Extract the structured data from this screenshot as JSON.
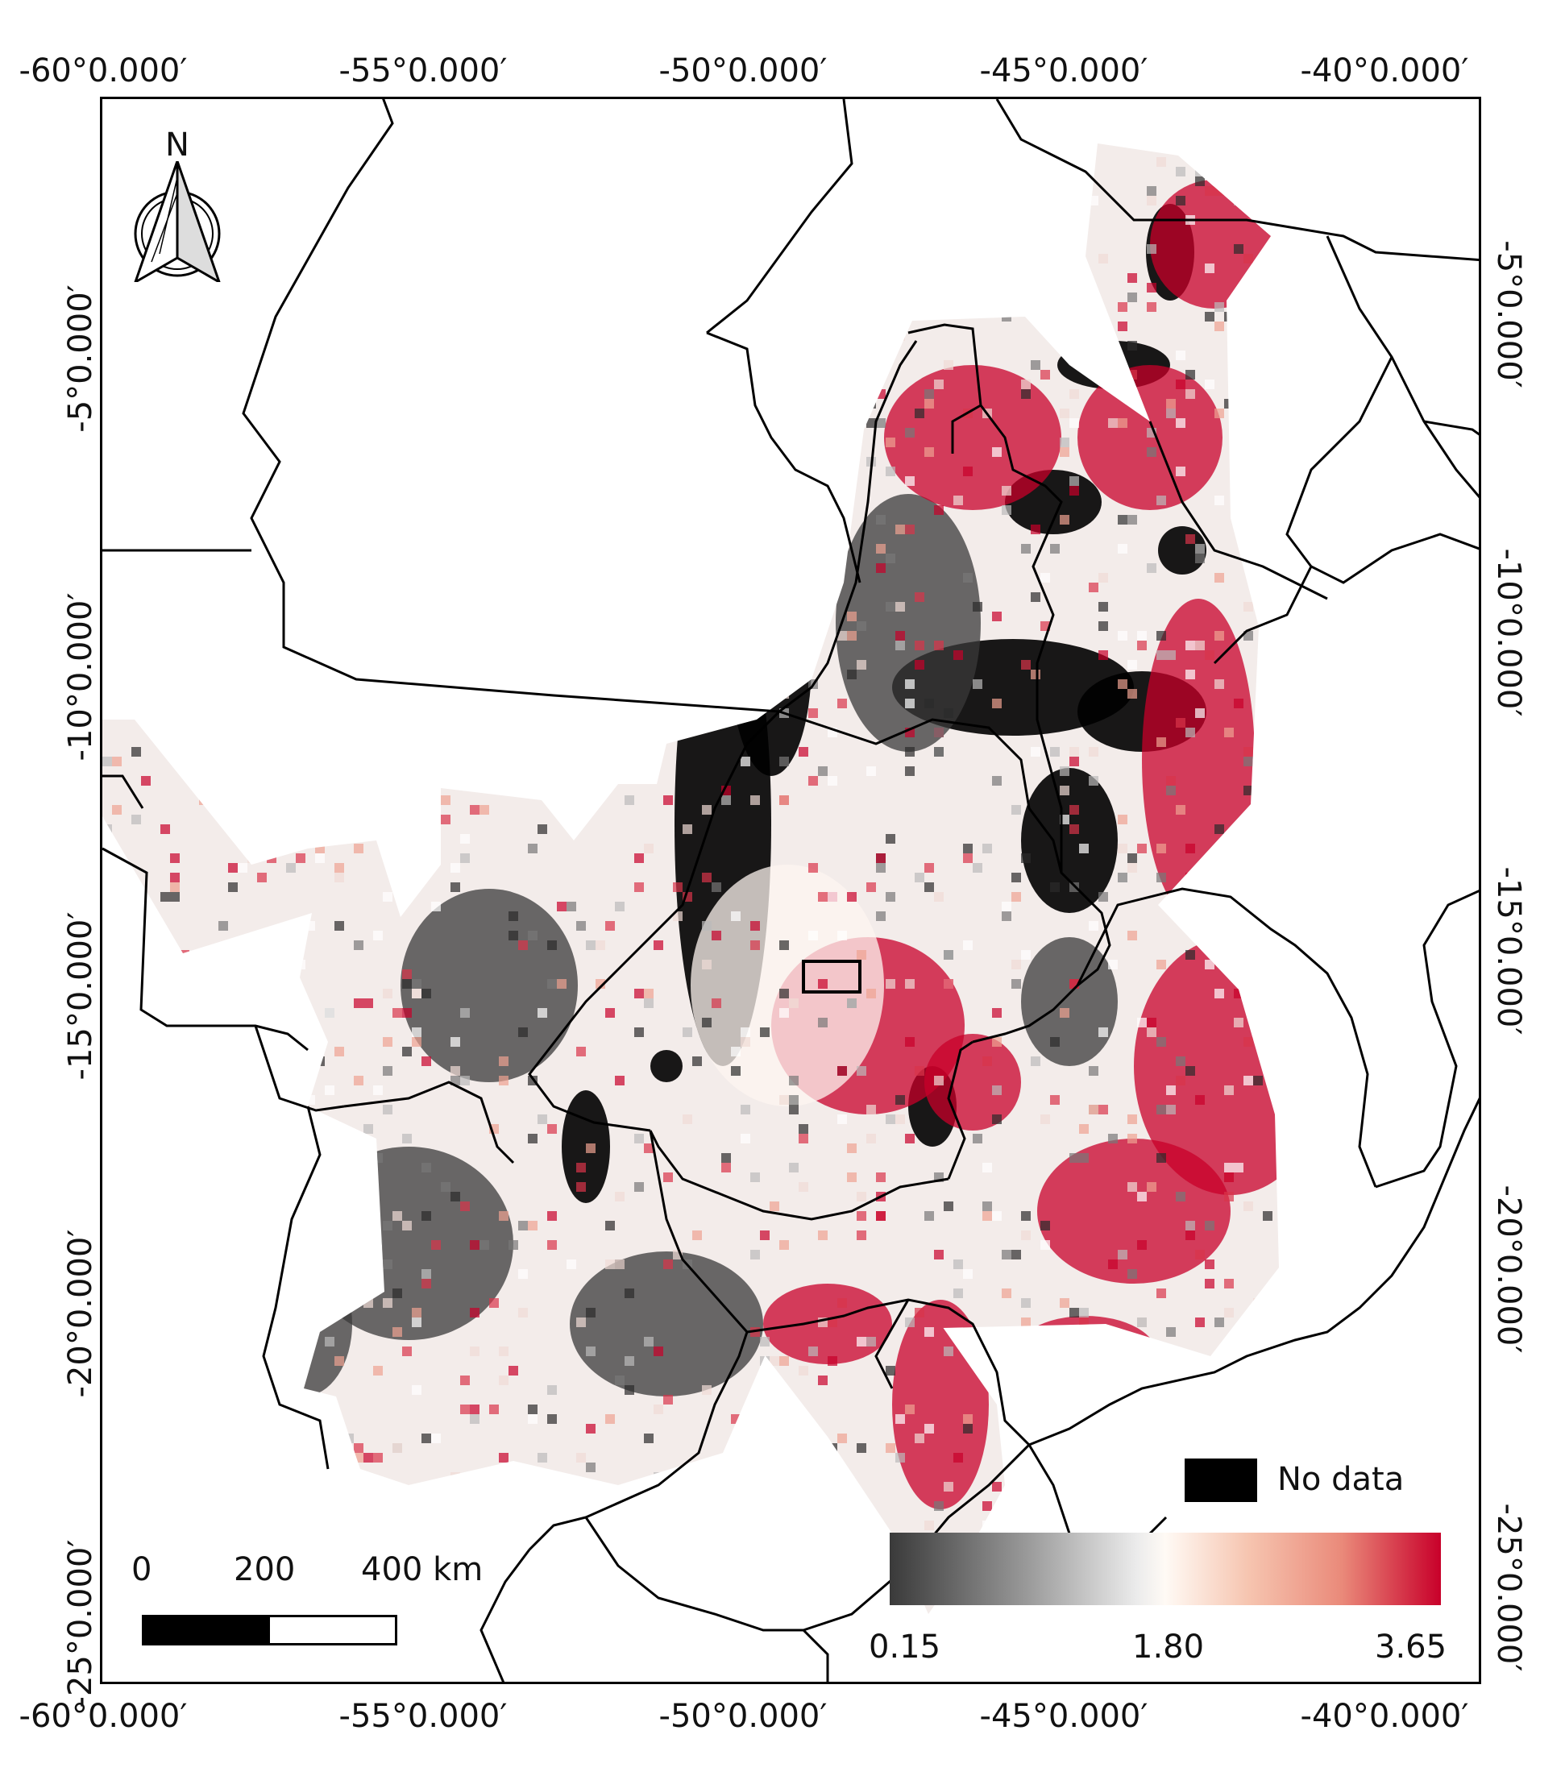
{
  "axes": {
    "top_ticks": [
      "-60°0.000′",
      "-55°0.000′",
      "-50°0.000′",
      "-45°0.000′",
      "-40°0.000′"
    ],
    "bottom_ticks": [
      "-60°0.000′",
      "-55°0.000′",
      "-50°0.000′",
      "-45°0.000′",
      "-40°0.000′"
    ],
    "left_ticks": [
      "-5°0.000′",
      "-10°0.000′",
      "-15°0.000′",
      "-20°0.000′",
      "-25°0.000′"
    ],
    "right_ticks": [
      "-5°0.000′",
      "-10°0.000′",
      "-15°0.000′",
      "-20°0.000′",
      "-25°0.000′"
    ]
  },
  "north_arrow": {
    "label": "N"
  },
  "scale_bar": {
    "labels": [
      "0",
      "200",
      "400 km"
    ]
  },
  "legend": {
    "no_data_label": "No data",
    "colorbar": {
      "min": "0.15",
      "mid": "1.80",
      "max": "3.65",
      "colors": [
        "#3a3a3a",
        "#ececec",
        "#fffaf5",
        "#c8002a"
      ]
    }
  },
  "colors": {
    "no_data": "#000000",
    "high": "#c8002a",
    "low": "#3a3a3a",
    "mid": "#fdf5f0"
  }
}
